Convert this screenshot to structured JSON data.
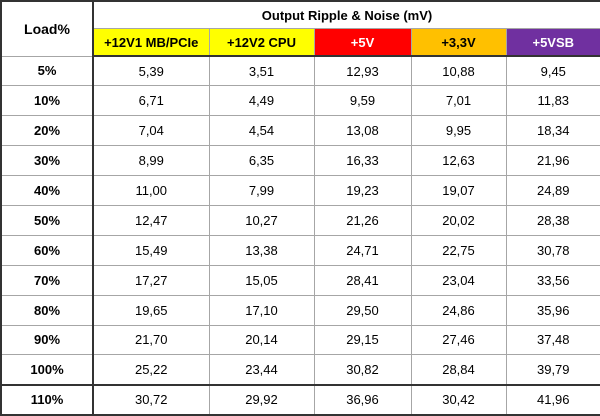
{
  "table": {
    "corner": "Load%",
    "title": "Output Ripple & Noise (mV)",
    "columns": [
      "+12V1 MB/PCIe",
      "+12V2 CPU",
      "+5V",
      "+3,3V",
      "+5VSB"
    ],
    "rows": [
      [
        "5%",
        "5,39",
        "3,51",
        "12,93",
        "10,88",
        "9,45"
      ],
      [
        "10%",
        "6,71",
        "4,49",
        "9,59",
        "7,01",
        "11,83"
      ],
      [
        "20%",
        "7,04",
        "4,54",
        "13,08",
        "9,95",
        "18,34"
      ],
      [
        "30%",
        "8,99",
        "6,35",
        "16,33",
        "12,63",
        "21,96"
      ],
      [
        "40%",
        "11,00",
        "7,99",
        "19,23",
        "19,07",
        "24,89"
      ],
      [
        "50%",
        "12,47",
        "10,27",
        "21,26",
        "20,02",
        "28,38"
      ],
      [
        "60%",
        "15,49",
        "13,38",
        "24,71",
        "22,75",
        "30,78"
      ],
      [
        "70%",
        "17,27",
        "15,05",
        "28,41",
        "23,04",
        "33,56"
      ],
      [
        "80%",
        "19,65",
        "17,10",
        "29,50",
        "24,86",
        "35,96"
      ],
      [
        "90%",
        "21,70",
        "20,14",
        "29,15",
        "27,46",
        "37,48"
      ],
      [
        "100%",
        "25,22",
        "23,44",
        "30,82",
        "28,84",
        "39,79"
      ],
      [
        "110%",
        "30,72",
        "29,92",
        "36,96",
        "30,42",
        "41,96"
      ]
    ]
  }
}
